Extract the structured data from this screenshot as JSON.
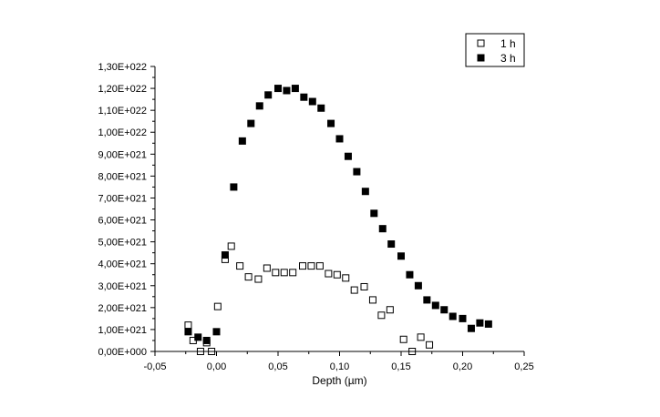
{
  "chart_data": {
    "type": "scatter",
    "title": "",
    "xlabel": "Depth (µm)",
    "ylabel": "",
    "xlim": [
      -0.05,
      0.25
    ],
    "ylim": [
      0,
      1.3e+22
    ],
    "x_ticks": [
      -0.05,
      0.0,
      0.05,
      0.1,
      0.15,
      0.2,
      0.25
    ],
    "x_tick_labels": [
      "-0,05",
      "0,00",
      "0,05",
      "0,10",
      "0,15",
      "0,20",
      "0,25"
    ],
    "y_ticks": [
      0,
      1e+21,
      2e+21,
      3e+21,
      4e+21,
      5e+21,
      6e+21,
      7e+21,
      8e+21,
      9e+21,
      1e+22,
      1.1e+22,
      1.2e+22,
      1.3e+22
    ],
    "y_tick_labels": [
      "0,00E+000",
      "1,00E+021",
      "2,00E+021",
      "3,00E+021",
      "4,00E+021",
      "5,00E+021",
      "6,00E+021",
      "7,00E+021",
      "8,00E+021",
      "9,00E+021",
      "1,00E+022",
      "1,10E+022",
      "1,20E+022",
      "1,30E+022"
    ],
    "grid": false,
    "legend_position": "top-right",
    "series": [
      {
        "name": "1 h",
        "marker": "open-square",
        "color": "#000000",
        "x": [
          -0.023,
          -0.019,
          -0.013,
          -0.008,
          -0.004,
          0.001,
          0.007,
          0.012,
          0.019,
          0.026,
          0.034,
          0.041,
          0.048,
          0.055,
          0.062,
          0.07,
          0.077,
          0.084,
          0.091,
          0.098,
          0.105,
          0.112,
          0.12,
          0.127,
          0.134,
          0.141,
          0.152,
          0.159,
          0.166,
          0.173
        ],
        "y": [
          1.2e+21,
          5e+20,
          0.0,
          4e+20,
          0.0,
          2.05e+21,
          4.2e+21,
          4.8e+21,
          3.9e+21,
          3.4e+21,
          3.3e+21,
          3.8e+21,
          3.6e+21,
          3.6e+21,
          3.6e+21,
          3.9e+21,
          3.9e+21,
          3.9e+21,
          3.55e+21,
          3.5e+21,
          3.35e+21,
          2.8e+21,
          2.95e+21,
          2.35e+21,
          1.65e+21,
          1.9e+21,
          5.5e+20,
          0.0,
          6.5e+20,
          3e+20
        ]
      },
      {
        "name": "3 h",
        "marker": "filled-square",
        "color": "#000000",
        "x": [
          -0.023,
          -0.015,
          -0.008,
          0.0,
          0.007,
          0.014,
          0.021,
          0.028,
          0.035,
          0.042,
          0.05,
          0.057,
          0.064,
          0.071,
          0.078,
          0.085,
          0.093,
          0.1,
          0.107,
          0.114,
          0.121,
          0.128,
          0.135,
          0.142,
          0.15,
          0.157,
          0.164,
          0.171,
          0.178,
          0.185,
          0.192,
          0.2,
          0.207,
          0.214,
          0.221
        ],
        "y": [
          9e+20,
          6.5e+20,
          5e+20,
          9e+20,
          4.4e+21,
          7.5e+21,
          9.6e+21,
          1.04e+22,
          1.12e+22,
          1.17e+22,
          1.2e+22,
          1.19e+22,
          1.2e+22,
          1.16e+22,
          1.14e+22,
          1.11e+22,
          1.04e+22,
          9.7e+21,
          8.9e+21,
          8.2e+21,
          7.3e+21,
          6.3e+21,
          5.6e+21,
          4.9e+21,
          4.35e+21,
          3.5e+21,
          3e+21,
          2.35e+21,
          2.1e+21,
          1.9e+21,
          1.6e+21,
          1.5e+21,
          1.05e+21,
          1.3e+21,
          1.25e+21
        ]
      }
    ]
  }
}
